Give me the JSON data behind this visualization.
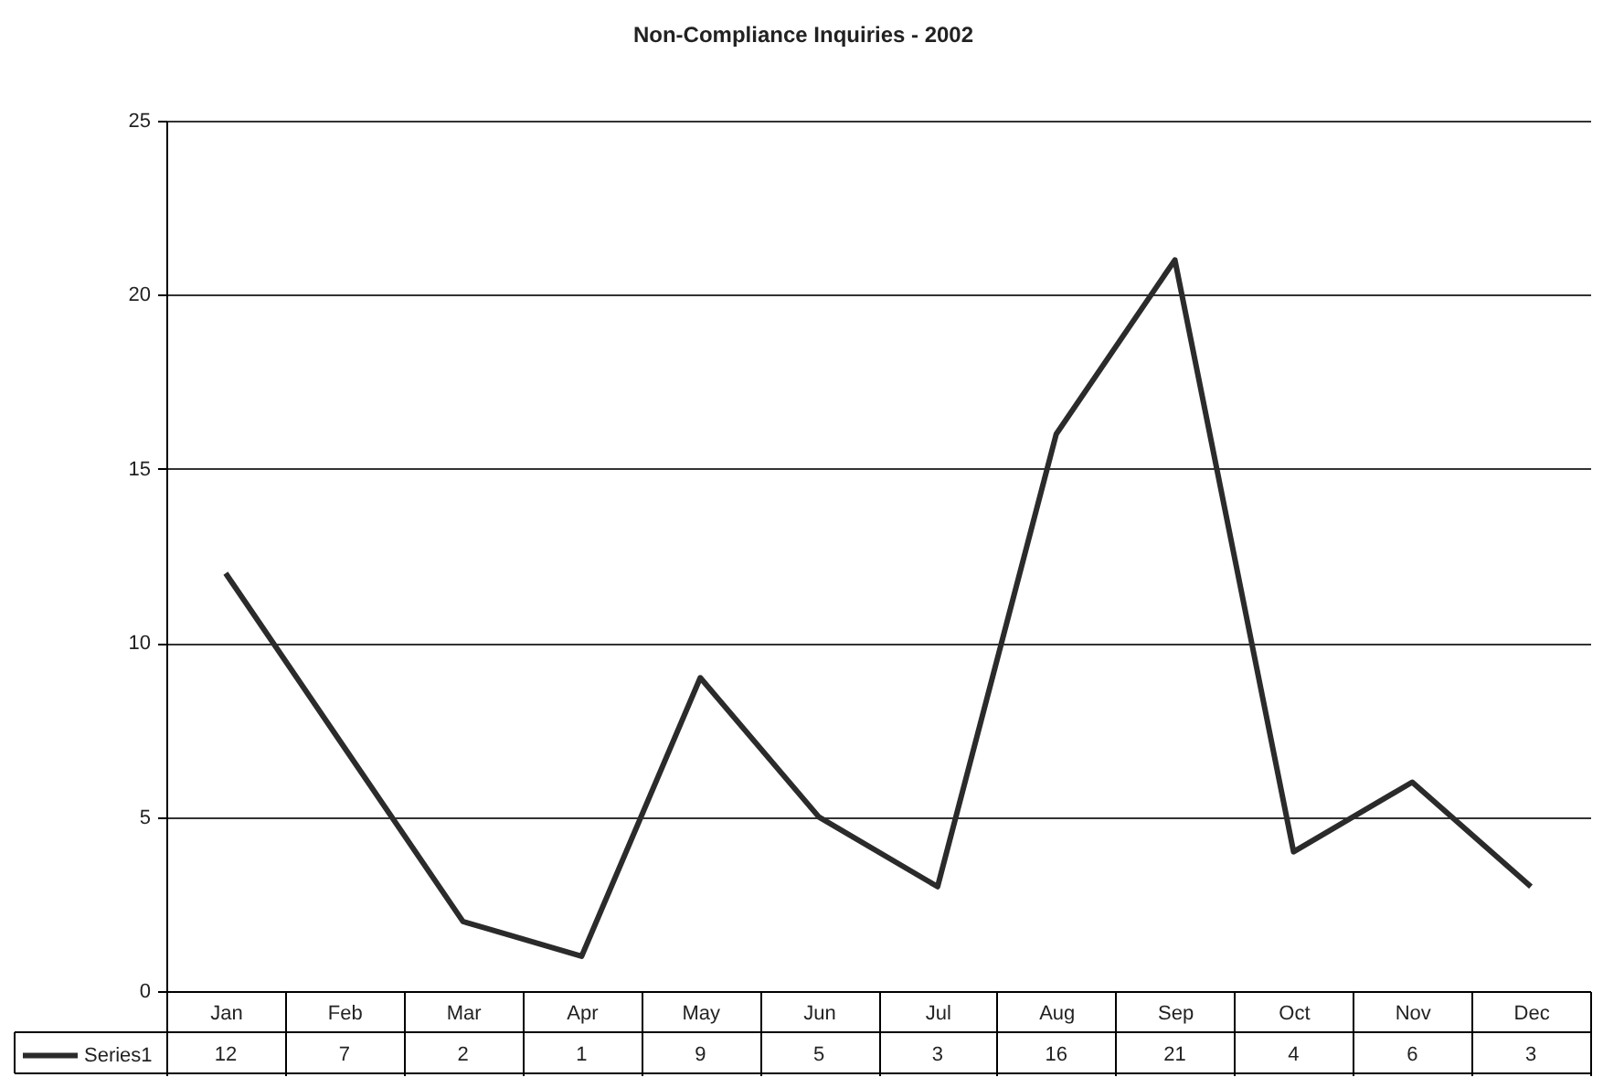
{
  "chart_data": {
    "type": "line",
    "title": "Non-Compliance Inquiries - 2002",
    "categories": [
      "Jan",
      "Feb",
      "Mar",
      "Apr",
      "May",
      "Jun",
      "Jul",
      "Aug",
      "Sep",
      "Oct",
      "Nov",
      "Dec"
    ],
    "series": [
      {
        "name": "Series1",
        "color": "#2b2b2b",
        "values": [
          12,
          7,
          2,
          1,
          9,
          5,
          3,
          16,
          21,
          4,
          6,
          3
        ]
      }
    ],
    "ylim": [
      0,
      25
    ],
    "yticks": [
      0,
      5,
      10,
      15,
      20,
      25
    ],
    "grid": "y",
    "data_labels": true,
    "legend": "bottom left"
  }
}
